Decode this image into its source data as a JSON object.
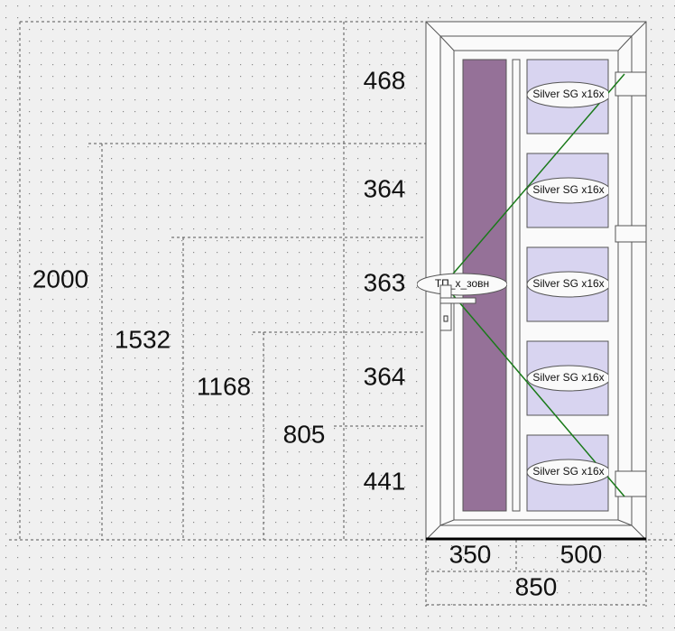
{
  "dimensions": {
    "heights": {
      "segments": [
        468,
        364,
        363,
        364,
        441
      ],
      "cumulative": [
        2000,
        1532,
        1168,
        805
      ]
    },
    "widths": {
      "segments": [
        350,
        500
      ],
      "total": 850
    }
  },
  "panels": {
    "fill_labels": [
      "Silver SG x16x",
      "Silver SG x16x",
      "Silver SG x16x",
      "Silver SG x16x",
      "Silver SG x16x"
    ],
    "side_label": "ТП_х_зовн"
  }
}
